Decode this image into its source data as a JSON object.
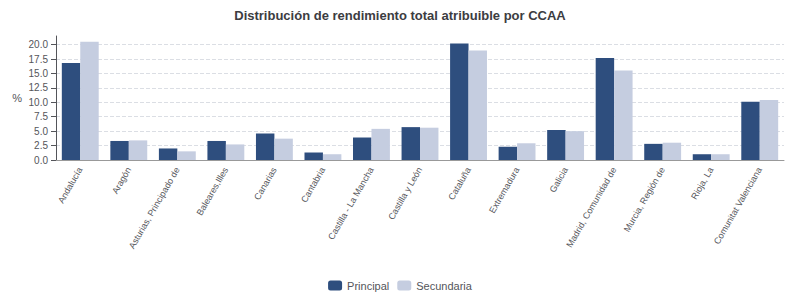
{
  "chart_data": {
    "type": "bar",
    "title": "Distribución de rendimiento total atribuible por CCAA",
    "ylabel": "%",
    "categories": [
      "Andalucía",
      "Aragón",
      "Asturias, Principado de",
      "Baleares,Illes",
      "Canarias",
      "Cantabria",
      "Castilla - La Mancha",
      "Castilla y León",
      "Cataluña",
      "Extremadura",
      "Galicia",
      "Madrid, Comunidad de",
      "Murcia, Región de",
      "Rioja, La",
      "Comunitat Valenciana"
    ],
    "series": [
      {
        "name": "Principal",
        "color": "#2E4E7E",
        "values": [
          16.8,
          3.3,
          2.0,
          3.3,
          4.6,
          1.3,
          3.9,
          5.7,
          20.2,
          2.3,
          5.2,
          17.7,
          2.8,
          1.0,
          10.1
        ]
      },
      {
        "name": "Secundaria",
        "color": "#C5CDE0",
        "values": [
          20.5,
          3.4,
          1.5,
          2.7,
          3.7,
          1.0,
          5.4,
          5.6,
          19.0,
          2.9,
          5.0,
          15.5,
          3.0,
          1.0,
          10.4
        ]
      }
    ],
    "ylim": [
      0,
      21.5
    ],
    "yticks": [
      {
        "value": 0,
        "label": "0.0"
      },
      2.5,
      {
        "value": 5,
        "label": "5.0"
      },
      7.5,
      {
        "value": 10,
        "label": "10.0"
      },
      12.5,
      {
        "value": 15,
        "label": "15.0"
      },
      17.5,
      {
        "value": 20,
        "label": "20.0"
      }
    ],
    "grid": true,
    "legend": "bottom"
  }
}
